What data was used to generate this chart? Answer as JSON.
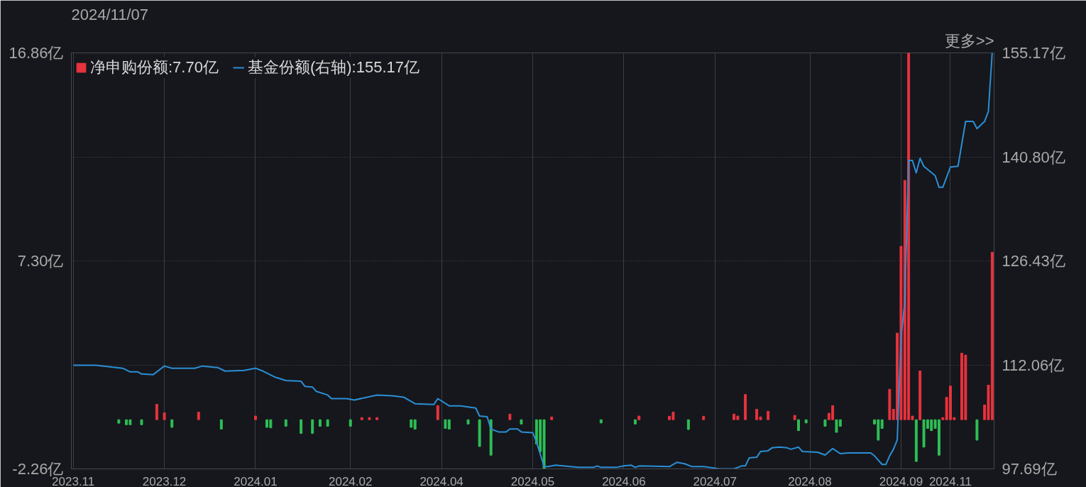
{
  "chart_data": {
    "type": "bar",
    "title": "2024/11/07",
    "annotations": [
      "更多>>"
    ],
    "categories": [
      "2023.11",
      null,
      null,
      null,
      null,
      null,
      null,
      null,
      null,
      null,
      null,
      null,
      null,
      null,
      null,
      null,
      null,
      null,
      null,
      null,
      null,
      null,
      null,
      null,
      "2023.12",
      null,
      null,
      null,
      null,
      null,
      null,
      null,
      null,
      null,
      null,
      null,
      null,
      null,
      null,
      null,
      null,
      null,
      null,
      null,
      null,
      null,
      null,
      null,
      "2024.01",
      null,
      null,
      null,
      null,
      null,
      null,
      null,
      null,
      null,
      null,
      null,
      null,
      null,
      null,
      null,
      null,
      null,
      null,
      null,
      null,
      null,
      null,
      null,
      null,
      "2024.02",
      null,
      null,
      null,
      null,
      null,
      null,
      null,
      null,
      null,
      null,
      null,
      null,
      null,
      null,
      null,
      null,
      null,
      null,
      null,
      null,
      null,
      null,
      null,
      "2024.04",
      null,
      null,
      null,
      null,
      null,
      null,
      null,
      null,
      null,
      null,
      null,
      null,
      null,
      null,
      null,
      null,
      null,
      null,
      null,
      null,
      null,
      null,
      null,
      "2024.05",
      null,
      null,
      null,
      null,
      null,
      null,
      null,
      null,
      null,
      null,
      null,
      null,
      null,
      null,
      null,
      null,
      null,
      null,
      null,
      null,
      null,
      null,
      null,
      "2024.06",
      null,
      null,
      null,
      null,
      null,
      null,
      null,
      null,
      null,
      null,
      null,
      null,
      null,
      null,
      null,
      null,
      null,
      null,
      null,
      null,
      null,
      null,
      null,
      "2024.07",
      null,
      null,
      null,
      null,
      null,
      null,
      null,
      null,
      null,
      null,
      null,
      null,
      null,
      null,
      null,
      null,
      null,
      null,
      null,
      null,
      null,
      null,
      null,
      null,
      "2024.08",
      null,
      null,
      null,
      null,
      null,
      null,
      null,
      null,
      null,
      null,
      null,
      null,
      null,
      null,
      null,
      null,
      null,
      null,
      null,
      null,
      null,
      null,
      null,
      "2024.09",
      null,
      null,
      null,
      null,
      null,
      null,
      null,
      null,
      null,
      null,
      null,
      null,
      "2024.11",
      null,
      null,
      null,
      null,
      null,
      null,
      null,
      null,
      null,
      null,
      null
    ],
    "ylim": [
      -2.26,
      16.86
    ],
    "yticks": [
      {
        "value": -2.26,
        "label": "-2.26亿"
      },
      {
        "value": 7.3,
        "label": "7.30亿"
      },
      {
        "value": 16.86,
        "label": "16.86亿"
      }
    ],
    "y2lim": [
      97.69,
      155.17
    ],
    "y2ticks": [
      {
        "value": 97.69,
        "label": "97.69亿"
      },
      {
        "value": 112.06,
        "label": "112.06亿"
      },
      {
        "value": 126.43,
        "label": "126.43亿"
      },
      {
        "value": 140.8,
        "label": "140.80亿"
      },
      {
        "value": 155.17,
        "label": "155.17亿"
      }
    ],
    "grid": true,
    "legend": "top left",
    "series": [
      {
        "name": "净申购份额:7.70亿",
        "color": "#e8333d",
        "values": [
          null,
          null,
          null,
          null,
          null,
          null,
          null,
          null,
          null,
          null,
          null,
          null,
          null,
          null,
          null,
          null,
          null,
          null,
          null,
          null,
          null,
          null,
          0.71,
          null,
          0.32,
          null,
          null,
          null,
          null,
          null,
          null,
          null,
          null,
          0.35,
          null,
          null,
          null,
          null,
          null,
          null,
          null,
          null,
          null,
          null,
          null,
          null,
          null,
          null,
          0.17,
          null,
          null,
          null,
          null,
          null,
          null,
          null,
          null,
          null,
          null,
          null,
          null,
          null,
          null,
          null,
          null,
          null,
          null,
          null,
          null,
          null,
          null,
          null,
          null,
          null,
          null,
          null,
          0.1,
          null,
          0.1,
          null,
          0.1,
          null,
          null,
          null,
          null,
          null,
          null,
          null,
          null,
          null,
          null,
          null,
          null,
          null,
          null,
          null,
          0.65,
          null,
          null,
          null,
          null,
          null,
          null,
          null,
          null,
          null,
          null,
          null,
          null,
          null,
          null,
          null,
          null,
          null,
          null,
          0.26,
          null,
          null,
          null,
          null,
          null,
          null,
          null,
          null,
          null,
          null,
          0.13,
          null,
          null,
          null,
          null,
          null,
          null,
          null,
          null,
          null,
          null,
          null,
          null,
          null,
          null,
          null,
          null,
          null,
          null,
          null,
          null,
          null,
          null,
          0.17,
          null,
          null,
          null,
          null,
          null,
          null,
          null,
          0.16,
          0.35,
          null,
          null,
          null,
          null,
          null,
          null,
          null,
          0.16,
          null,
          null,
          null,
          null,
          null,
          null,
          null,
          0.26,
          0.17,
          null,
          1.16,
          null,
          null,
          0.48,
          0.13,
          null,
          0.39,
          null,
          null,
          null,
          null,
          null,
          null,
          0.2,
          null,
          null,
          null,
          null,
          null,
          null,
          null,
          null,
          0.3,
          0.65,
          null,
          null,
          null,
          null,
          null,
          null,
          null,
          null,
          null,
          null,
          null,
          null,
          null,
          null,
          1.4,
          0.48,
          3.98,
          7.97,
          11.0,
          16.86,
          0.17,
          null,
          2.24,
          null,
          null,
          null,
          null,
          null,
          0.1,
          1.03,
          1.55,
          0.1,
          null,
          3.06,
          2.97,
          null,
          null,
          null,
          null,
          0.68,
          1.59,
          7.7
        ]
      },
      {
        "color": "#2fbf55",
        "values": [
          null,
          null,
          null,
          null,
          null,
          null,
          null,
          null,
          null,
          null,
          null,
          null,
          -0.16,
          null,
          -0.23,
          -0.23,
          null,
          null,
          -0.23,
          null,
          null,
          null,
          null,
          null,
          null,
          null,
          -0.35,
          null,
          null,
          null,
          null,
          null,
          null,
          null,
          null,
          null,
          null,
          null,
          null,
          -0.43,
          null,
          null,
          null,
          null,
          null,
          null,
          null,
          null,
          null,
          null,
          null,
          -0.35,
          -0.37,
          null,
          null,
          null,
          -0.3,
          null,
          null,
          null,
          -0.63,
          null,
          null,
          -0.63,
          null,
          -0.3,
          null,
          -0.3,
          null,
          null,
          null,
          null,
          null,
          -0.3,
          null,
          null,
          null,
          null,
          null,
          null,
          null,
          null,
          null,
          null,
          null,
          null,
          null,
          null,
          null,
          -0.35,
          -0.43,
          null,
          null,
          null,
          null,
          null,
          null,
          null,
          -0.4,
          -0.43,
          null,
          null,
          null,
          null,
          -0.2,
          null,
          null,
          -1.23,
          null,
          null,
          -1.63,
          null,
          null,
          null,
          null,
          null,
          null,
          null,
          -0.2,
          null,
          null,
          null,
          -1.12,
          -1.47,
          -2.26,
          null,
          null,
          null,
          null,
          null,
          null,
          null,
          null,
          null,
          null,
          null,
          null,
          null,
          null,
          -0.15,
          null,
          null,
          null,
          null,
          null,
          null,
          null,
          null,
          -0.2,
          null,
          null,
          null,
          null,
          null,
          null,
          null,
          null,
          null,
          null,
          null,
          null,
          null,
          -0.45,
          null,
          null,
          null,
          null,
          null,
          null,
          null,
          null,
          null,
          null,
          null,
          null,
          null,
          null,
          null,
          null,
          null,
          null,
          null,
          null,
          null,
          null,
          null,
          null,
          null,
          null,
          null,
          null,
          -0.5,
          null,
          -0.15,
          null,
          null,
          null,
          null,
          -0.3,
          null,
          null,
          -0.58,
          -0.3,
          null,
          null,
          null,
          null,
          null,
          null,
          null,
          null,
          -0.2,
          -0.94,
          -0.4,
          null,
          null,
          null,
          null,
          null,
          null,
          null,
          null,
          -1.92,
          null,
          -1.26,
          -0.4,
          -0.5,
          -0.4,
          -1.63,
          null,
          null,
          null,
          null,
          null,
          null,
          null,
          null,
          null,
          -0.94,
          null,
          null,
          null,
          null
        ]
      },
      {
        "name": "基金份额(右轴):155.17亿",
        "type": "line",
        "axis": "y2",
        "color": "#2b8fd6",
        "values": [
          112.0,
          null,
          null,
          null,
          null,
          null,
          112.0,
          null,
          111.9,
          null,
          null,
          null,
          null,
          111.6,
          null,
          111.1,
          null,
          111.1,
          110.8,
          null,
          null,
          110.7,
          null,
          111.5,
          111.9,
          null,
          111.6,
          null,
          null,
          null,
          null,
          null,
          111.6,
          null,
          111.9,
          null,
          null,
          null,
          111.7,
          null,
          111.2,
          null,
          null,
          null,
          null,
          111.3,
          null,
          null,
          111.6,
          null,
          111.2,
          null,
          null,
          110.4,
          null,
          null,
          109.9,
          null,
          null,
          null,
          109.8,
          109.1,
          null,
          109.0,
          108.4,
          null,
          null,
          107.9,
          107.4,
          null,
          null,
          null,
          107.4,
          null,
          107.2,
          null,
          null,
          null,
          null,
          null,
          107.9,
          null,
          null,
          null,
          107.8,
          null,
          null,
          107.6,
          null,
          null,
          106.7,
          null,
          null,
          null,
          null,
          106.6,
          107.4,
          null,
          null,
          106.4,
          null,
          null,
          106.4,
          null,
          null,
          null,
          106.1,
          105.0,
          null,
          104.9,
          103.2,
          null,
          102.8,
          null,
          102.8,
          103.2,
          null,
          103.2,
          102.8,
          null,
          null,
          102.7,
          101.4,
          null,
          98.0,
          98.0,
          null,
          98.2,
          null,
          null,
          null,
          98.0,
          null,
          97.9,
          null,
          null,
          null,
          97.9,
          98.1,
          97.9,
          null,
          null,
          null,
          97.9,
          null,
          98.1,
          null,
          98.2,
          97.9,
          98.1,
          null,
          null,
          null,
          null,
          null,
          null,
          null,
          98.0,
          null,
          98.6,
          null,
          98.4,
          null,
          98.0,
          null,
          null,
          98.0,
          null,
          null,
          97.8,
          97.7,
          null,
          null,
          null,
          97.7,
          null,
          98.1,
          98.1,
          99.2,
          null,
          99.3,
          100.1,
          null,
          100.2,
          100.6,
          null,
          100.7,
          null,
          100.6,
          100.4,
          null,
          100.7,
          100.1,
          null,
          null,
          null,
          100.0,
          null,
          99.6,
          null,
          100.5,
          null,
          99.8,
          null,
          99.9,
          null,
          null,
          null,
          null,
          null,
          99.9,
          99.5,
          null,
          98.3,
          98.3,
          99.5,
          100.4,
          101.7,
          115.9,
          120.8,
          140.3,
          140.3,
          138.6,
          140.6,
          139.5,
          null,
          null,
          138.2,
          136.6,
          136.6,
          null,
          139.4,
          null,
          139.5,
          null,
          145.7,
          null,
          145.7,
          144.7,
          null,
          145.7,
          147.1,
          155.17
        ]
      }
    ]
  }
}
